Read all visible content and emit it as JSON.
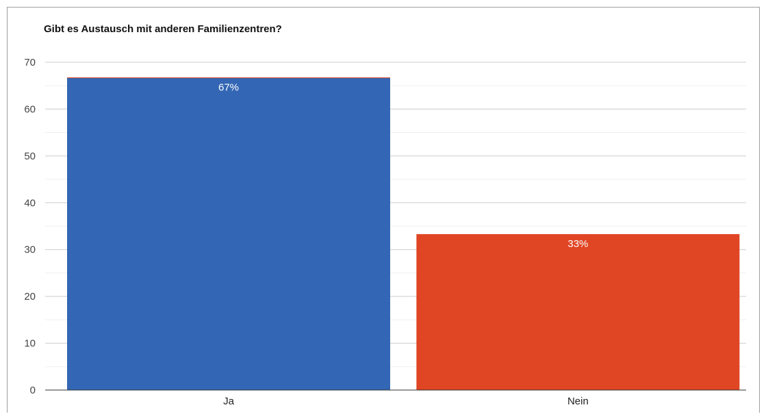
{
  "chart_data": {
    "type": "bar",
    "title": "Gibt es Austausch mit anderen Familienzentren?",
    "xlabel": "",
    "ylabel": "",
    "categories": [
      "Ja",
      "Nein"
    ],
    "values": [
      66.7,
      33.3
    ],
    "data_labels": [
      "67%",
      "33%"
    ],
    "colors": [
      "#3366b4",
      "#e04524"
    ],
    "ylim": [
      0,
      70
    ],
    "yticks": [
      0,
      10,
      20,
      30,
      40,
      50,
      60,
      70
    ],
    "grid": true,
    "legend": "none"
  }
}
